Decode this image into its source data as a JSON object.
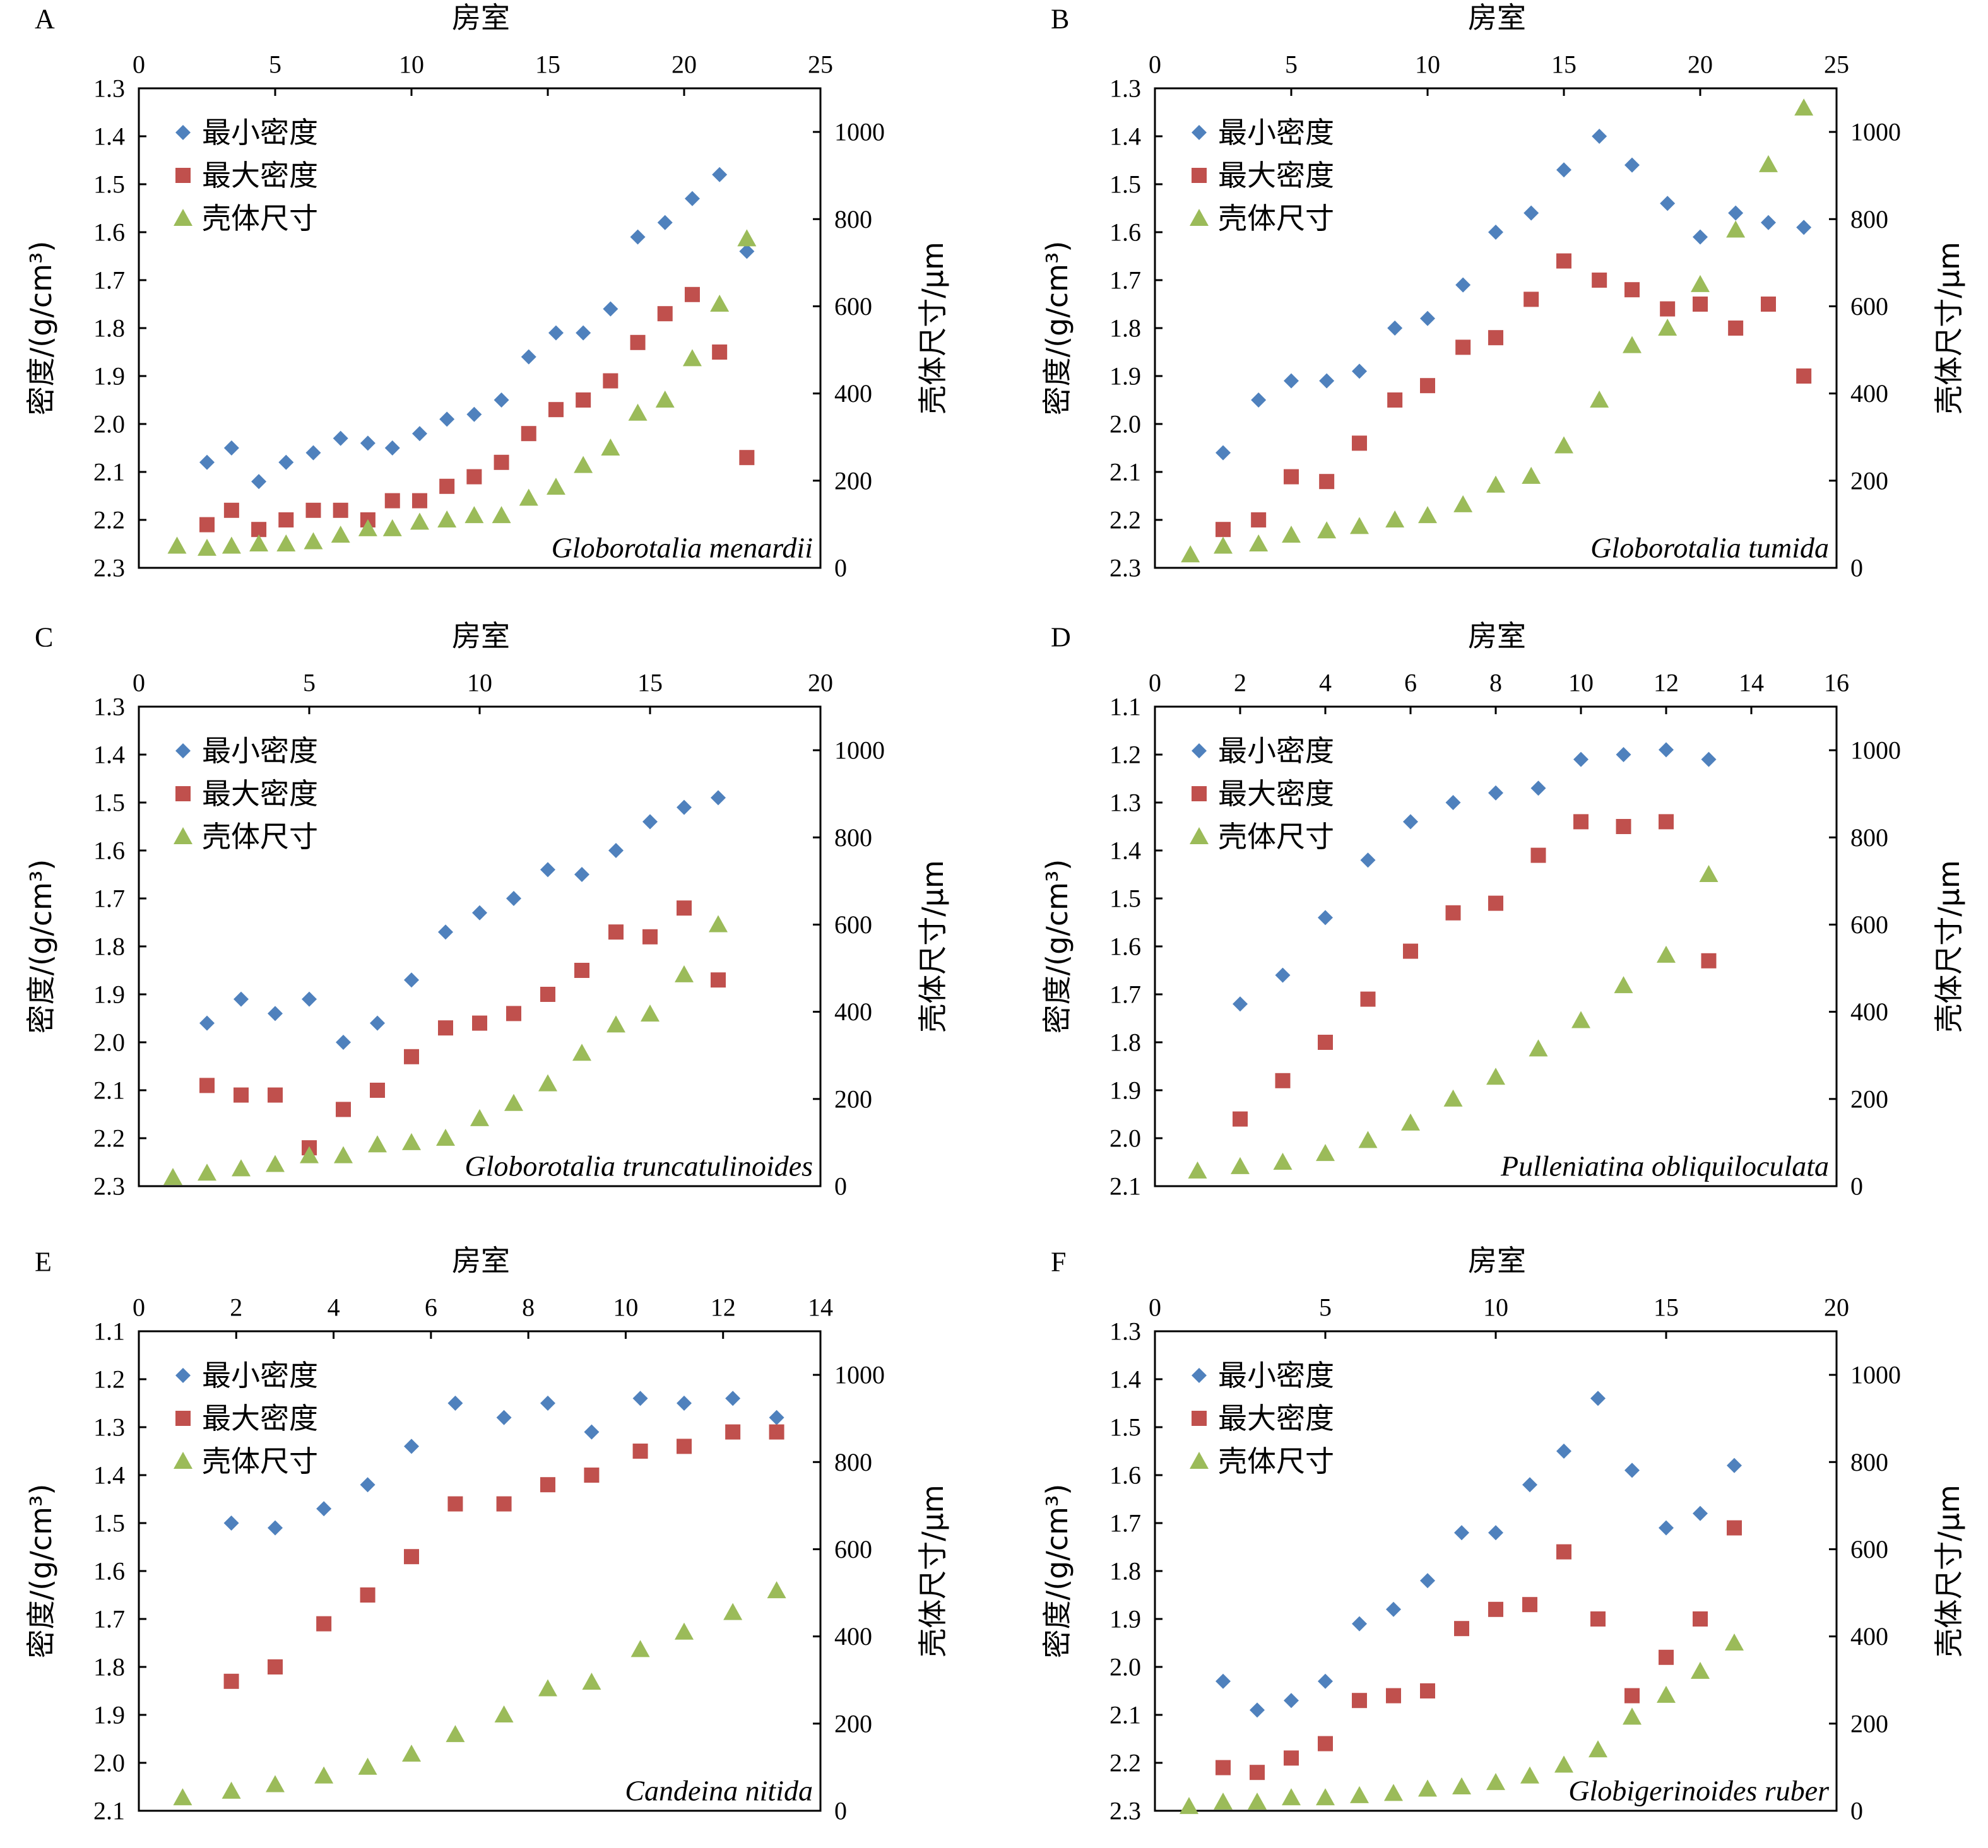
{
  "colors": {
    "min_density": "#4F81BD",
    "max_density": "#C0504D",
    "shell_size": "#9BBB59",
    "axis": "#000000"
  },
  "chart_data": [
    {
      "panel": "A",
      "type": "scatter",
      "species": "Globorotalia menardii",
      "xlabel": "房室",
      "ylabel_left": "密度/(g/cm³)",
      "ylabel_right": "壳体尺寸/μm",
      "xlim": [
        0,
        25
      ],
      "xticks": [
        0,
        5,
        10,
        15,
        20,
        25
      ],
      "ylim_left": [
        1.3,
        2.3
      ],
      "left_inverted": true,
      "yticks_left": [
        1.3,
        1.4,
        1.5,
        1.6,
        1.7,
        1.8,
        1.9,
        2.0,
        2.1,
        2.2,
        2.3
      ],
      "ylim_right": [
        0,
        1100
      ],
      "yticks_right": [
        0,
        200,
        400,
        600,
        800,
        1000
      ],
      "legend": [
        "最小密度",
        "最大密度",
        "壳体尺寸"
      ],
      "series": [
        {
          "name": "最小密度",
          "axis": "left",
          "marker": "diamond",
          "x": [
            2.5,
            3.4,
            4.4,
            5.4,
            6.4,
            7.4,
            8.4,
            9.3,
            10.3,
            11.3,
            12.3,
            13.3,
            14.3,
            15.3,
            16.3,
            17.3,
            18.3,
            19.3,
            20.3,
            21.3,
            22.3
          ],
          "y": [
            2.08,
            2.05,
            2.12,
            2.08,
            2.06,
            2.03,
            2.04,
            2.05,
            2.02,
            1.99,
            1.98,
            1.95,
            1.86,
            1.81,
            1.81,
            1.76,
            1.61,
            1.58,
            1.53,
            1.48,
            1.64
          ]
        },
        {
          "name": "最大密度",
          "axis": "left",
          "marker": "square",
          "x": [
            2.5,
            3.4,
            4.4,
            5.4,
            6.4,
            7.4,
            8.4,
            9.3,
            10.3,
            11.3,
            12.3,
            13.3,
            14.3,
            15.3,
            16.3,
            17.3,
            18.3,
            19.3,
            20.3,
            21.3,
            22.3
          ],
          "y": [
            2.21,
            2.18,
            2.22,
            2.2,
            2.18,
            2.18,
            2.2,
            2.16,
            2.16,
            2.13,
            2.11,
            2.08,
            2.02,
            1.97,
            1.95,
            1.91,
            1.83,
            1.77,
            1.73,
            1.85,
            2.07
          ]
        },
        {
          "name": "壳体尺寸",
          "axis": "right",
          "marker": "triangle",
          "x": [
            1.4,
            2.5,
            3.4,
            4.4,
            5.4,
            6.4,
            7.4,
            8.4,
            9.3,
            10.3,
            11.3,
            12.3,
            13.3,
            14.3,
            15.3,
            16.3,
            17.3,
            18.3,
            19.3,
            20.3,
            21.3,
            22.3
          ],
          "y": [
            50,
            45,
            50,
            55,
            55,
            60,
            75,
            90,
            90,
            105,
            110,
            120,
            120,
            160,
            185,
            235,
            275,
            355,
            385,
            480,
            605,
            755
          ]
        }
      ]
    },
    {
      "panel": "B",
      "type": "scatter",
      "species": "Globorotalia tumida",
      "xlabel": "房室",
      "ylabel_left": "密度/(g/cm³)",
      "ylabel_right": "壳体尺寸/μm",
      "xlim": [
        0,
        25
      ],
      "xticks": [
        0,
        5,
        10,
        15,
        20,
        25
      ],
      "ylim_left": [
        1.3,
        2.3
      ],
      "left_inverted": true,
      "yticks_left": [
        1.3,
        1.4,
        1.5,
        1.6,
        1.7,
        1.8,
        1.9,
        2.0,
        2.1,
        2.2,
        2.3
      ],
      "ylim_right": [
        0,
        1100
      ],
      "yticks_right": [
        0,
        200,
        400,
        600,
        800,
        1000
      ],
      "legend": [
        "最小密度",
        "最大密度",
        "壳体尺寸"
      ],
      "series": [
        {
          "name": "最小密度",
          "axis": "left",
          "marker": "diamond",
          "x": [
            2.5,
            3.8,
            5.0,
            6.3,
            7.5,
            8.8,
            10.0,
            11.3,
            12.5,
            13.8,
            15.0,
            16.3,
            17.5,
            18.8,
            20.0,
            21.3,
            22.5,
            23.8
          ],
          "y": [
            2.06,
            1.95,
            1.91,
            1.91,
            1.89,
            1.8,
            1.78,
            1.71,
            1.6,
            1.56,
            1.47,
            1.4,
            1.46,
            1.54,
            1.61,
            1.56,
            1.58,
            1.59
          ]
        },
        {
          "name": "最大密度",
          "axis": "left",
          "marker": "square",
          "x": [
            2.5,
            3.8,
            5.0,
            6.3,
            7.5,
            8.8,
            10.0,
            11.3,
            12.5,
            13.8,
            15.0,
            16.3,
            17.5,
            18.8,
            20.0,
            21.3,
            22.5,
            23.8
          ],
          "y": [
            2.22,
            2.2,
            2.11,
            2.12,
            2.04,
            1.95,
            1.92,
            1.84,
            1.82,
            1.74,
            1.66,
            1.7,
            1.72,
            1.76,
            1.75,
            1.8,
            1.75,
            1.9
          ]
        },
        {
          "name": "壳体尺寸",
          "axis": "right",
          "marker": "triangle",
          "x": [
            1.3,
            2.5,
            3.8,
            5.0,
            6.3,
            7.5,
            8.8,
            10.0,
            11.3,
            12.5,
            13.8,
            15.0,
            16.3,
            17.5,
            18.8,
            20.0,
            21.3,
            22.5,
            23.8
          ],
          "y": [
            30,
            50,
            55,
            75,
            85,
            95,
            110,
            120,
            145,
            190,
            210,
            280,
            385,
            510,
            550,
            650,
            775,
            925,
            1055
          ]
        }
      ]
    },
    {
      "panel": "C",
      "type": "scatter",
      "species": "Globorotalia truncatulinoides",
      "xlabel": "房室",
      "ylabel_left": "密度/(g/cm³)",
      "ylabel_right": "壳体尺寸/μm",
      "xlim": [
        0,
        20
      ],
      "xticks": [
        0,
        5,
        10,
        15,
        20
      ],
      "ylim_left": [
        1.3,
        2.3
      ],
      "left_inverted": true,
      "yticks_left": [
        1.3,
        1.4,
        1.5,
        1.6,
        1.7,
        1.8,
        1.9,
        2.0,
        2.1,
        2.2,
        2.3
      ],
      "ylim_right": [
        0,
        1100
      ],
      "yticks_right": [
        0,
        200,
        400,
        600,
        800,
        1000
      ],
      "legend": [
        "最小密度",
        "最大密度",
        "壳体尺寸"
      ],
      "series": [
        {
          "name": "最小密度",
          "axis": "left",
          "marker": "diamond",
          "x": [
            2.0,
            3.0,
            4.0,
            5.0,
            6.0,
            7.0,
            8.0,
            9.0,
            10.0,
            11.0,
            12.0,
            13.0,
            14.0,
            15.0,
            16.0,
            17.0
          ],
          "y": [
            1.96,
            1.91,
            1.94,
            1.91,
            2.0,
            1.96,
            1.87,
            1.77,
            1.73,
            1.7,
            1.64,
            1.65,
            1.6,
            1.54,
            1.51,
            1.49
          ]
        },
        {
          "name": "最大密度",
          "axis": "left",
          "marker": "square",
          "x": [
            2.0,
            3.0,
            4.0,
            5.0,
            6.0,
            7.0,
            8.0,
            9.0,
            10.0,
            11.0,
            12.0,
            13.0,
            14.0,
            15.0,
            16.0,
            17.0
          ],
          "y": [
            2.09,
            2.11,
            2.11,
            2.22,
            2.14,
            2.1,
            2.03,
            1.97,
            1.96,
            1.94,
            1.9,
            1.85,
            1.77,
            1.78,
            1.72,
            1.87
          ]
        },
        {
          "name": "壳体尺寸",
          "axis": "right",
          "marker": "triangle",
          "x": [
            1.0,
            2.0,
            3.0,
            4.0,
            5.0,
            6.0,
            7.0,
            8.0,
            9.0,
            10.0,
            11.0,
            12.0,
            13.0,
            14.0,
            15.0,
            16.0,
            17.0
          ],
          "y": [
            20,
            30,
            40,
            50,
            70,
            70,
            95,
            100,
            110,
            155,
            190,
            235,
            305,
            370,
            395,
            485,
            600
          ]
        }
      ]
    },
    {
      "panel": "D",
      "type": "scatter",
      "species": "Pulleniatina obliquiloculata",
      "xlabel": "房室",
      "ylabel_left": "密度/(g/cm³)",
      "ylabel_right": "壳体尺寸/μm",
      "xlim": [
        0,
        16
      ],
      "xticks": [
        0,
        2,
        4,
        6,
        8,
        10,
        12,
        14,
        16
      ],
      "ylim_left": [
        1.1,
        2.1
      ],
      "left_inverted": true,
      "yticks_left": [
        1.1,
        1.2,
        1.3,
        1.4,
        1.5,
        1.6,
        1.7,
        1.8,
        1.9,
        2.0,
        2.1
      ],
      "ylim_right": [
        0,
        1100
      ],
      "yticks_right": [
        0,
        200,
        400,
        600,
        800,
        1000
      ],
      "legend": [
        "最小密度",
        "最大密度",
        "壳体尺寸"
      ],
      "series": [
        {
          "name": "最小密度",
          "axis": "left",
          "marker": "diamond",
          "x": [
            2.0,
            3.0,
            4.0,
            5.0,
            6.0,
            7.0,
            8.0,
            9.0,
            10.0,
            11.0,
            12.0,
            13.0
          ],
          "y": [
            1.72,
            1.66,
            1.54,
            1.42,
            1.34,
            1.3,
            1.28,
            1.27,
            1.21,
            1.2,
            1.19,
            1.21
          ]
        },
        {
          "name": "最大密度",
          "axis": "left",
          "marker": "square",
          "x": [
            2.0,
            3.0,
            4.0,
            5.0,
            6.0,
            7.0,
            8.0,
            9.0,
            10.0,
            11.0,
            12.0,
            13.0
          ],
          "y": [
            1.96,
            1.88,
            1.8,
            1.71,
            1.61,
            1.53,
            1.51,
            1.41,
            1.34,
            1.35,
            1.34,
            1.63
          ]
        },
        {
          "name": "壳体尺寸",
          "axis": "right",
          "marker": "triangle",
          "x": [
            1.0,
            2.0,
            3.0,
            4.0,
            5.0,
            6.0,
            7.0,
            8.0,
            9.0,
            10.0,
            11.0,
            12.0,
            13.0
          ],
          "y": [
            35,
            45,
            55,
            75,
            105,
            145,
            200,
            250,
            315,
            380,
            460,
            530,
            715
          ]
        }
      ]
    },
    {
      "panel": "E",
      "type": "scatter",
      "species": "Candeina nitida",
      "xlabel": "房室",
      "ylabel_left": "密度/(g/cm³)",
      "ylabel_right": "壳体尺寸/μm",
      "xlim": [
        0,
        14
      ],
      "xticks": [
        0,
        2,
        4,
        6,
        8,
        10,
        12,
        14
      ],
      "ylim_left": [
        1.1,
        2.1
      ],
      "left_inverted": true,
      "yticks_left": [
        1.1,
        1.2,
        1.3,
        1.4,
        1.5,
        1.6,
        1.7,
        1.8,
        1.9,
        2.0,
        2.1
      ],
      "ylim_right": [
        0,
        1100
      ],
      "yticks_right": [
        0,
        200,
        400,
        600,
        800,
        1000
      ],
      "legend": [
        "最小密度",
        "最大密度",
        "壳体尺寸"
      ],
      "series": [
        {
          "name": "最小密度",
          "axis": "left",
          "marker": "diamond",
          "x": [
            1.9,
            2.8,
            3.8,
            4.7,
            5.6,
            6.5,
            7.5,
            8.4,
            9.3,
            10.3,
            11.2,
            12.2,
            13.1
          ],
          "y": [
            1.5,
            1.51,
            1.47,
            1.42,
            1.34,
            1.25,
            1.28,
            1.25,
            1.31,
            1.24,
            1.25,
            1.24,
            1.28
          ]
        },
        {
          "name": "最大密度",
          "axis": "left",
          "marker": "square",
          "x": [
            1.9,
            2.8,
            3.8,
            4.7,
            5.6,
            6.5,
            7.5,
            8.4,
            9.3,
            10.3,
            11.2,
            12.2,
            13.1
          ],
          "y": [
            1.83,
            1.8,
            1.71,
            1.65,
            1.57,
            1.46,
            1.46,
            1.42,
            1.4,
            1.35,
            1.34,
            1.31,
            1.31
          ]
        },
        {
          "name": "壳体尺寸",
          "axis": "right",
          "marker": "triangle",
          "x": [
            0.9,
            1.9,
            2.8,
            3.8,
            4.7,
            5.6,
            6.5,
            7.5,
            8.4,
            9.3,
            10.3,
            11.2,
            12.2,
            13.1
          ],
          "y": [
            30,
            45,
            60,
            80,
            100,
            130,
            175,
            220,
            280,
            295,
            370,
            410,
            455,
            505
          ]
        }
      ]
    },
    {
      "panel": "F",
      "type": "scatter",
      "species": "Globigerinoides ruber",
      "xlabel": "房室",
      "ylabel_left": "密度/(g/cm³)",
      "ylabel_right": "壳体尺寸/μm",
      "xlim": [
        0,
        20
      ],
      "xticks": [
        0,
        5,
        10,
        15,
        20
      ],
      "ylim_left": [
        1.3,
        2.3
      ],
      "left_inverted": true,
      "yticks_left": [
        1.3,
        1.4,
        1.5,
        1.6,
        1.7,
        1.8,
        1.9,
        2.0,
        2.1,
        2.2,
        2.3
      ],
      "ylim_right": [
        0,
        1100
      ],
      "yticks_right": [
        0,
        200,
        400,
        600,
        800,
        1000
      ],
      "legend": [
        "最小密度",
        "最大密度",
        "壳体尺寸"
      ],
      "series": [
        {
          "name": "最小密度",
          "axis": "left",
          "marker": "diamond",
          "x": [
            2.0,
            3.0,
            4.0,
            5.0,
            6.0,
            7.0,
            8.0,
            9.0,
            10.0,
            11.0,
            12.0,
            13.0,
            14.0,
            15.0,
            16.0,
            17.0
          ],
          "y": [
            2.03,
            2.09,
            2.07,
            2.03,
            1.91,
            1.88,
            1.82,
            1.72,
            1.72,
            1.62,
            1.55,
            1.44,
            1.59,
            1.71,
            1.68,
            1.58
          ]
        },
        {
          "name": "最大密度",
          "axis": "left",
          "marker": "square",
          "x": [
            2.0,
            3.0,
            4.0,
            5.0,
            6.0,
            7.0,
            8.0,
            9.0,
            10.0,
            11.0,
            12.0,
            13.0,
            14.0,
            15.0,
            16.0,
            17.0
          ],
          "y": [
            2.21,
            2.22,
            2.19,
            2.16,
            2.07,
            2.06,
            2.05,
            1.92,
            1.88,
            1.87,
            1.76,
            1.9,
            2.06,
            1.98,
            1.9,
            1.71
          ]
        },
        {
          "name": "壳体尺寸",
          "axis": "right",
          "marker": "triangle",
          "x": [
            1.0,
            2.0,
            3.0,
            4.0,
            5.0,
            6.0,
            7.0,
            8.0,
            9.0,
            10.0,
            11.0,
            12.0,
            13.0,
            14.0,
            15.0,
            16.0,
            17.0
          ],
          "y": [
            10,
            20,
            20,
            30,
            30,
            35,
            40,
            50,
            55,
            65,
            80,
            105,
            140,
            215,
            265,
            320,
            385
          ]
        }
      ]
    }
  ]
}
